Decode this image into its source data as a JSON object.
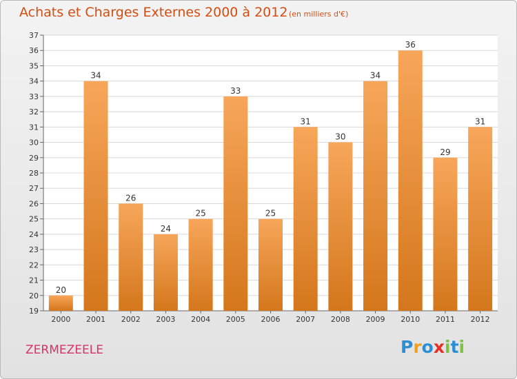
{
  "header": {
    "title": "Achats et Charges Externes 2000 à 2012",
    "subtitle": "(en milliers d'€)"
  },
  "footer": {
    "place": "ZERMEZEELE",
    "brand_letters": [
      {
        "char": "P",
        "color": "#2b8fd6"
      },
      {
        "char": "r",
        "color": "#f0a020"
      },
      {
        "char": "o",
        "color": "#2b8fd6"
      },
      {
        "char": "x",
        "color": "#e5302a"
      },
      {
        "char": "i",
        "color": "#7dc242"
      },
      {
        "char": "t",
        "color": "#2b8fd6"
      },
      {
        "char": "i",
        "color": "#7dc242"
      }
    ]
  },
  "chart_data": {
    "type": "bar",
    "title": "Achats et Charges Externes 2000 à 2012",
    "subtitle": "(en milliers d'€)",
    "categories": [
      "2000",
      "2001",
      "2002",
      "2003",
      "2004",
      "2005",
      "2006",
      "2007",
      "2008",
      "2009",
      "2010",
      "2011",
      "2012"
    ],
    "values": [
      20,
      34,
      26,
      24,
      25,
      33,
      25,
      31,
      30,
      34,
      36,
      29,
      31
    ],
    "ylim": [
      19,
      37
    ],
    "yticks": [
      19,
      20,
      21,
      22,
      23,
      24,
      25,
      26,
      27,
      28,
      29,
      30,
      31,
      32,
      33,
      34,
      35,
      36,
      37
    ],
    "grid": true,
    "bar_color_light": "#f7a65a",
    "bar_color_dark": "#d4771c"
  }
}
